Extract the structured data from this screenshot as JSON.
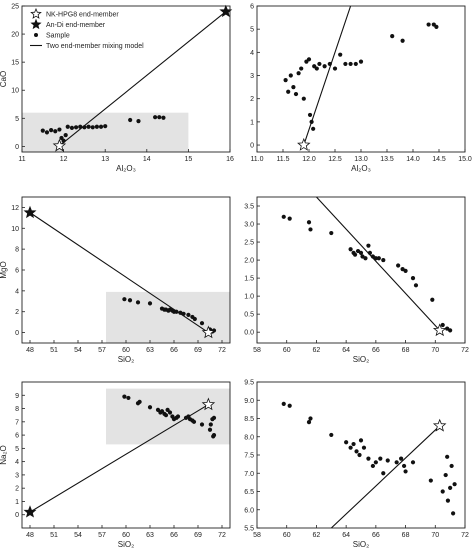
{
  "legend": {
    "items": [
      {
        "key": "nk",
        "label": "NK-HPG8 end-member",
        "symbol": "star-open"
      },
      {
        "key": "andi",
        "label": "An-Di end-member",
        "symbol": "star-solid"
      },
      {
        "key": "sample",
        "label": "Sample",
        "symbol": "dot"
      },
      {
        "key": "line",
        "label": "Two end-member mixing model",
        "symbol": "line"
      }
    ]
  },
  "chart_data": [
    {
      "id": "p1",
      "type": "scatter",
      "xlabel": "Al₂O₃",
      "ylabel": "CaO",
      "xlim": [
        11,
        16
      ],
      "ylim": [
        -1,
        25
      ],
      "xticks": [
        11,
        12,
        13,
        14,
        15,
        16
      ],
      "yticks": [
        0,
        5,
        10,
        15,
        20,
        25
      ],
      "shade": {
        "x": [
          11,
          15
        ],
        "y": [
          -1,
          6
        ]
      },
      "line": [
        [
          11.9,
          0.1
        ],
        [
          15.9,
          24.0
        ]
      ],
      "nk": [
        11.9,
        0.1
      ],
      "andi": [
        15.9,
        24.0
      ],
      "samples": [
        [
          11.5,
          2.8
        ],
        [
          11.6,
          2.5
        ],
        [
          11.7,
          2.9
        ],
        [
          11.8,
          2.7
        ],
        [
          11.9,
          3.0
        ],
        [
          11.95,
          1.5
        ],
        [
          12.0,
          1.0
        ],
        [
          12.05,
          2.0
        ],
        [
          12.1,
          3.5
        ],
        [
          12.2,
          3.3
        ],
        [
          12.3,
          3.4
        ],
        [
          12.4,
          3.5
        ],
        [
          12.5,
          3.4
        ],
        [
          12.6,
          3.5
        ],
        [
          12.7,
          3.4
        ],
        [
          12.8,
          3.5
        ],
        [
          12.9,
          3.5
        ],
        [
          13.0,
          3.6
        ],
        [
          13.6,
          4.7
        ],
        [
          13.8,
          4.5
        ],
        [
          14.2,
          5.2
        ],
        [
          14.3,
          5.2
        ],
        [
          14.4,
          5.1
        ]
      ]
    },
    {
      "id": "p2",
      "type": "scatter",
      "xlabel": "Al₂O₃",
      "ylabel": "",
      "xlim": [
        11.0,
        15.0
      ],
      "ylim": [
        -0.3,
        6
      ],
      "xticks": [
        11.0,
        11.5,
        12.0,
        12.5,
        13.0,
        13.5,
        14.0,
        14.5,
        15.0
      ],
      "xticklabels": [
        "11.0",
        "11.5",
        "12.0",
        "12.5",
        "13.0",
        "13.5",
        "14.0",
        "14.5",
        "15.0"
      ],
      "yticks": [
        0,
        1,
        2,
        3,
        4,
        5,
        6
      ],
      "line": [
        [
          11.9,
          0.0
        ],
        [
          12.8,
          6.0
        ]
      ],
      "nk": [
        11.9,
        0.0
      ],
      "samples": [
        [
          11.55,
          2.8
        ],
        [
          11.6,
          2.3
        ],
        [
          11.65,
          3.0
        ],
        [
          11.7,
          2.5
        ],
        [
          11.75,
          2.2
        ],
        [
          11.8,
          3.1
        ],
        [
          11.85,
          3.3
        ],
        [
          11.9,
          2.0
        ],
        [
          11.95,
          3.6
        ],
        [
          12.0,
          3.7
        ],
        [
          12.02,
          1.3
        ],
        [
          12.05,
          1.0
        ],
        [
          12.08,
          0.7
        ],
        [
          12.1,
          3.4
        ],
        [
          12.15,
          3.3
        ],
        [
          12.2,
          3.5
        ],
        [
          12.3,
          3.4
        ],
        [
          12.4,
          3.5
        ],
        [
          12.5,
          3.3
        ],
        [
          12.6,
          3.9
        ],
        [
          12.7,
          3.5
        ],
        [
          12.8,
          3.5
        ],
        [
          12.9,
          3.5
        ],
        [
          13.0,
          3.6
        ],
        [
          13.6,
          4.7
        ],
        [
          13.8,
          4.5
        ],
        [
          14.3,
          5.2
        ],
        [
          14.4,
          5.2
        ],
        [
          14.45,
          5.1
        ]
      ]
    },
    {
      "id": "p3",
      "type": "scatter",
      "xlabel": "SiO₂",
      "ylabel": "MgO",
      "xlim": [
        47,
        73
      ],
      "ylim": [
        -1,
        13
      ],
      "xticks": [
        48,
        51,
        54,
        57,
        60,
        63,
        66,
        69,
        72
      ],
      "yticks": [
        0,
        2,
        4,
        6,
        8,
        10,
        12
      ],
      "shade": {
        "x": [
          57.5,
          73
        ],
        "y": [
          -1,
          3.9
        ]
      },
      "line": [
        [
          48.0,
          11.5
        ],
        [
          70.3,
          0.0
        ]
      ],
      "nk": [
        70.3,
        0.0
      ],
      "andi": [
        48.0,
        11.5
      ],
      "samples": [
        [
          59.8,
          3.2
        ],
        [
          60.5,
          3.1
        ],
        [
          61.5,
          2.9
        ],
        [
          63.0,
          2.8
        ],
        [
          64.5,
          2.3
        ],
        [
          64.8,
          2.2
        ],
        [
          65.0,
          2.2
        ],
        [
          65.3,
          2.1
        ],
        [
          65.5,
          2.2
        ],
        [
          65.8,
          2.1
        ],
        [
          66.0,
          2.0
        ],
        [
          66.3,
          2.0
        ],
        [
          66.8,
          1.9
        ],
        [
          67.2,
          1.8
        ],
        [
          67.8,
          1.7
        ],
        [
          68.3,
          1.5
        ],
        [
          68.6,
          1.3
        ],
        [
          69.5,
          0.9
        ],
        [
          70.5,
          0.3
        ],
        [
          70.8,
          0.1
        ],
        [
          71.0,
          0.2
        ]
      ]
    },
    {
      "id": "p4",
      "type": "scatter",
      "xlabel": "SiO₂",
      "ylabel": "",
      "xlim": [
        58,
        72
      ],
      "ylim": [
        -0.3,
        3.75
      ],
      "xticks": [
        58,
        60,
        62,
        64,
        66,
        68,
        70,
        72
      ],
      "yticks": [
        0.0,
        0.5,
        1.0,
        1.5,
        2.0,
        2.5,
        3.0,
        3.5
      ],
      "yticklabels": [
        "0.0",
        "0.5",
        "1.0",
        "1.5",
        "2.0",
        "2.5",
        "3.0",
        "3.5"
      ],
      "line": [
        [
          62.0,
          3.75
        ],
        [
          70.3,
          0.05
        ]
      ],
      "nk": [
        70.3,
        0.05
      ],
      "samples": [
        [
          59.8,
          3.2
        ],
        [
          60.2,
          3.15
        ],
        [
          61.5,
          3.05
        ],
        [
          61.6,
          2.85
        ],
        [
          63.0,
          2.75
        ],
        [
          64.3,
          2.3
        ],
        [
          64.5,
          2.2
        ],
        [
          64.6,
          2.15
        ],
        [
          64.8,
          2.25
        ],
        [
          65.0,
          2.2
        ],
        [
          65.1,
          2.1
        ],
        [
          65.3,
          2.05
        ],
        [
          65.5,
          2.4
        ],
        [
          65.6,
          2.2
        ],
        [
          65.8,
          2.1
        ],
        [
          66.0,
          2.05
        ],
        [
          66.2,
          2.05
        ],
        [
          66.5,
          2.0
        ],
        [
          67.5,
          1.85
        ],
        [
          67.8,
          1.75
        ],
        [
          68.0,
          1.7
        ],
        [
          68.5,
          1.5
        ],
        [
          68.7,
          1.3
        ],
        [
          69.8,
          0.9
        ],
        [
          70.5,
          0.2
        ],
        [
          70.8,
          0.1
        ],
        [
          71.0,
          0.05
        ]
      ]
    },
    {
      "id": "p5",
      "type": "scatter",
      "xlabel": "SiO₂",
      "ylabel": "Na₂O",
      "xlim": [
        47,
        73
      ],
      "ylim": [
        -1,
        10
      ],
      "xticks": [
        48,
        51,
        54,
        57,
        60,
        63,
        66,
        69,
        72
      ],
      "yticks": [
        0,
        1,
        2,
        3,
        4,
        5,
        6,
        7,
        8,
        9
      ],
      "shade": {
        "x": [
          57.5,
          73
        ],
        "y": [
          5.3,
          9.5
        ]
      },
      "line": [
        [
          48.0,
          0.2
        ],
        [
          70.3,
          8.3
        ]
      ],
      "nk": [
        70.3,
        8.3
      ],
      "andi": [
        48.0,
        0.2
      ],
      "samples": [
        [
          59.8,
          8.9
        ],
        [
          60.3,
          8.8
        ],
        [
          61.5,
          8.4
        ],
        [
          61.7,
          8.5
        ],
        [
          63.0,
          8.1
        ],
        [
          64.0,
          7.9
        ],
        [
          64.3,
          7.7
        ],
        [
          64.5,
          7.8
        ],
        [
          64.8,
          7.6
        ],
        [
          65.0,
          7.5
        ],
        [
          65.2,
          7.9
        ],
        [
          65.5,
          7.7
        ],
        [
          65.8,
          7.4
        ],
        [
          66.0,
          7.2
        ],
        [
          66.3,
          7.3
        ],
        [
          66.5,
          7.4
        ],
        [
          67.5,
          7.3
        ],
        [
          67.8,
          7.4
        ],
        [
          68.0,
          7.2
        ],
        [
          68.3,
          7.1
        ],
        [
          68.5,
          7.0
        ],
        [
          69.5,
          6.8
        ],
        [
          70.5,
          6.4
        ],
        [
          70.6,
          6.8
        ],
        [
          70.8,
          7.2
        ],
        [
          71.0,
          6.0
        ],
        [
          71.0,
          7.3
        ],
        [
          70.9,
          5.9
        ]
      ]
    },
    {
      "id": "p6",
      "type": "scatter",
      "xlabel": "SiO₂",
      "ylabel": "",
      "xlim": [
        58,
        72
      ],
      "ylim": [
        5.5,
        9.5
      ],
      "xticks": [
        58,
        60,
        62,
        64,
        66,
        68,
        70,
        72
      ],
      "yticks": [
        5.5,
        6.0,
        6.5,
        7.0,
        7.5,
        8.0,
        8.5,
        9.0,
        9.5
      ],
      "yticklabels": [
        "5.5",
        "6.0",
        "6.5",
        "7.0",
        "7.5",
        "8.0",
        "8.5",
        "9.0",
        "9.5"
      ],
      "line": [
        [
          63.0,
          5.5
        ],
        [
          70.3,
          8.3
        ]
      ],
      "nk": [
        70.3,
        8.3
      ],
      "samples": [
        [
          59.8,
          8.9
        ],
        [
          60.2,
          8.85
        ],
        [
          61.5,
          8.4
        ],
        [
          61.6,
          8.5
        ],
        [
          63.0,
          8.05
        ],
        [
          64.0,
          7.85
        ],
        [
          64.3,
          7.7
        ],
        [
          64.5,
          7.8
        ],
        [
          64.7,
          7.6
        ],
        [
          64.9,
          7.5
        ],
        [
          65.0,
          7.9
        ],
        [
          65.2,
          7.7
        ],
        [
          65.5,
          7.4
        ],
        [
          65.8,
          7.2
        ],
        [
          66.0,
          7.3
        ],
        [
          66.3,
          7.4
        ],
        [
          66.5,
          7.0
        ],
        [
          66.8,
          7.35
        ],
        [
          67.4,
          7.3
        ],
        [
          67.7,
          7.4
        ],
        [
          67.9,
          7.2
        ],
        [
          68.0,
          7.05
        ],
        [
          68.5,
          7.3
        ],
        [
          69.7,
          6.8
        ],
        [
          70.5,
          6.5
        ],
        [
          70.7,
          6.95
        ],
        [
          70.8,
          7.45
        ],
        [
          70.85,
          6.25
        ],
        [
          71.0,
          6.6
        ],
        [
          71.1,
          7.2
        ],
        [
          71.2,
          5.9
        ],
        [
          71.3,
          6.7
        ]
      ]
    }
  ]
}
